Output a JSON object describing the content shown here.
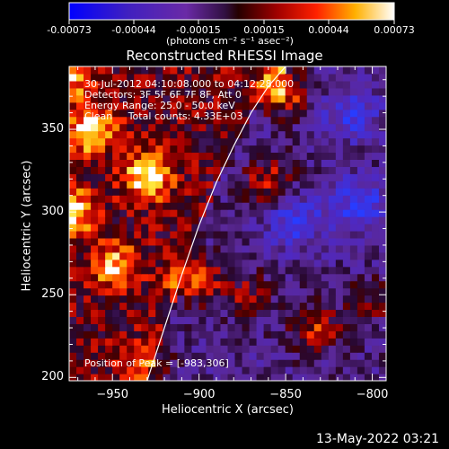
{
  "colorbar": {
    "tick_labels": [
      "-0.00073",
      "-0.00044",
      "-0.00015",
      "0.00015",
      "0.00044",
      "0.00073"
    ],
    "unit_label": "(photons cm⁻² s⁻¹ asec⁻²)"
  },
  "footer": {
    "timestamp": "13-May-2022 03:21"
  },
  "chart_data": {
    "type": "heatmap",
    "title": "Reconstructed RHESSI Image",
    "xlabel": "Heliocentric X (arcsec)",
    "ylabel": "Heliocentric Y (arcsec)",
    "xlim": [
      -975,
      -792
    ],
    "ylim": [
      198,
      388
    ],
    "x_ticks": [
      -950,
      -900,
      -850,
      -800
    ],
    "y_ticks": [
      200,
      250,
      300,
      350
    ],
    "colormap": "red-temperature (blue-purple-red-yellow-white)",
    "color_range": [
      -0.00073,
      0.00073
    ],
    "annotations": [
      "30-Jul-2012 04:10:08.000 to 04:12:28.000",
      "Detectors: 3F 5F 6F 7F 8F, Att 0",
      "Energy Range: 25.0 - 50.0 keV",
      "Clean     Total counts: 4.33E+03"
    ],
    "peak_label": "Position of Peak = [-983,306]",
    "limb_curve": {
      "x": [
        -930,
        -920,
        -910,
        -900,
        -890,
        -880,
        -870,
        -860,
        -850
      ],
      "y": [
        198,
        230,
        262,
        292,
        318,
        340,
        360,
        376,
        388
      ]
    },
    "hotspots": [
      {
        "x": -852,
        "y": 374,
        "v": 0.0007
      },
      {
        "x": -930,
        "y": 322,
        "v": 0.00068
      },
      {
        "x": -962,
        "y": 350,
        "v": 0.00062
      },
      {
        "x": -975,
        "y": 300,
        "v": 0.00066
      },
      {
        "x": -902,
        "y": 260,
        "v": 0.00065
      },
      {
        "x": -860,
        "y": 318,
        "v": 0.0005
      },
      {
        "x": -948,
        "y": 268,
        "v": 0.00048
      },
      {
        "x": -832,
        "y": 230,
        "v": 0.00048
      },
      {
        "x": -872,
        "y": 250,
        "v": 0.00035
      },
      {
        "x": -930,
        "y": 208,
        "v": 0.00035
      },
      {
        "x": -975,
        "y": 380,
        "v": 0.00045
      },
      {
        "x": -800,
        "y": 246,
        "v": 0.0003
      }
    ],
    "coldspots": [
      {
        "x": -845,
        "y": 295,
        "v": -0.00045
      },
      {
        "x": -808,
        "y": 305,
        "v": -0.00048
      },
      {
        "x": -812,
        "y": 360,
        "v": -0.0004
      }
    ]
  }
}
